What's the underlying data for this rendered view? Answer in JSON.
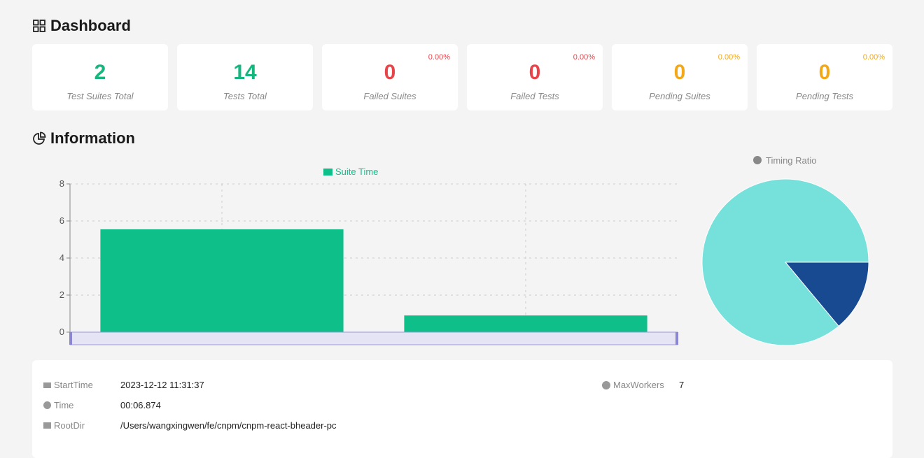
{
  "dashboard": {
    "title": "Dashboard",
    "icon": "grid-icon",
    "cards": [
      {
        "value": "2",
        "label": "Test Suites Total",
        "color": "#16b67f"
      },
      {
        "value": "14",
        "label": "Tests Total",
        "color": "#16b67f"
      },
      {
        "value": "0",
        "label": "Failed Suites",
        "percent": "0.00%",
        "color": "#e8454b"
      },
      {
        "value": "0",
        "label": "Failed Tests",
        "percent": "0.00%",
        "color": "#e8454b"
      },
      {
        "value": "0",
        "label": "Pending Suites",
        "percent": "0.00%",
        "color": "#f2a818"
      },
      {
        "value": "0",
        "label": "Pending Tests",
        "percent": "0.00%",
        "color": "#f2a818"
      }
    ]
  },
  "information": {
    "title": "Information",
    "icon": "pie-chart-icon"
  },
  "chart_data": [
    {
      "type": "bar",
      "legend": [
        "Suite Time"
      ],
      "legend_placement": "top",
      "series": [
        {
          "name": "Suite Time",
          "values": [
            5.55,
            0.9
          ],
          "color": "#0ebf8a"
        }
      ],
      "categories": [
        "",
        ""
      ],
      "ylim": [
        0,
        8
      ],
      "yticks": [
        0,
        2,
        4,
        6,
        8
      ],
      "grid": true,
      "datazoom_slider": true
    },
    {
      "type": "pie",
      "title": "Timing Ratio",
      "values": [
        5.55,
        0.9
      ],
      "colors": [
        "#76e0db",
        "#174a91"
      ]
    }
  ],
  "details": {
    "start_time": {
      "label": "StartTime",
      "value": "2023-12-12 11:31:37"
    },
    "time": {
      "label": "Time",
      "value": "00:06.874"
    },
    "root_dir": {
      "label": "RootDir",
      "value": "/Users/wangxingwen/fe/cnpm/cnpm-react-bheader-pc"
    },
    "max_workers": {
      "label": "MaxWorkers",
      "value": "7"
    }
  }
}
